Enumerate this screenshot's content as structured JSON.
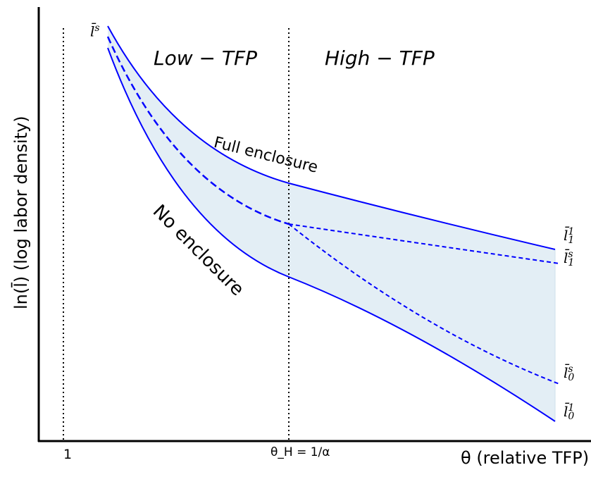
{
  "axes": {
    "ylabel": "ln(l̄) (log labor density)",
    "xlabel": "θ (relative TFP)",
    "xticks": [
      "1",
      "θ_H = 1/α"
    ]
  },
  "regions": {
    "low": "Low − TFP",
    "high": "High − TFP"
  },
  "annotations": {
    "full": "Full enclosure",
    "none": "No enclosure"
  },
  "curve_labels": {
    "top_left": {
      "base": "l̄",
      "sup": "s"
    },
    "l1_1": {
      "base": "l̄",
      "sup": "1",
      "sub": "1"
    },
    "ls_1": {
      "base": "l̄",
      "sup": "s",
      "sub": "1"
    },
    "ls_0": {
      "base": "l̄",
      "sup": "s",
      "sub": "0"
    },
    "l1_0": {
      "base": "l̄",
      "sup": "1",
      "sub": "0"
    }
  },
  "colors": {
    "curve": "#0000ff",
    "fill": "#e3eef5",
    "axis": "#000000"
  }
}
